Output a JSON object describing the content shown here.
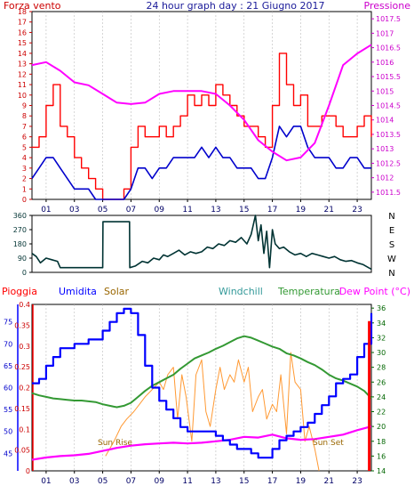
{
  "chart_data": [
    {
      "type": "line",
      "title": "24 hour graph day : 21 Giugno 2017",
      "left_label": "Forza vento",
      "right_label": "Pressione",
      "x_ticks": [
        "01",
        "03",
        "05",
        "07",
        "09",
        "11",
        "13",
        "15",
        "17",
        "19",
        "21",
        "23"
      ],
      "y_left_ticks": [
        "0",
        "1",
        "2",
        "3",
        "4",
        "5",
        "6",
        "7",
        "8",
        "9",
        "10",
        "11",
        "12",
        "13",
        "14",
        "15",
        "16",
        "17",
        "18"
      ],
      "y_right_ticks": [
        "1011.5",
        "1012",
        "1012.5",
        "1013",
        "1013.5",
        "1014",
        "1014.5",
        "1015",
        "1015.5",
        "1016",
        "1016.5",
        "1017",
        "1017.5"
      ],
      "xlim": [
        0,
        24
      ],
      "ylim_left": [
        0,
        18
      ],
      "ylim_right": [
        1011.25,
        1017.75
      ],
      "colors": {
        "gust": "#ff0000",
        "wind": "#0000cc",
        "pressure": "#ff00ff",
        "left_axis": "#cc0000",
        "right_axis": "#cc00cc"
      },
      "series": [
        {
          "key": "gust",
          "x": [
            0,
            0.5,
            1,
            1.5,
            2,
            2.5,
            3,
            3.5,
            4,
            4.5,
            5,
            5.5,
            6,
            6.5,
            7,
            7.5,
            8,
            8.5,
            9,
            9.5,
            10,
            10.5,
            11,
            11.5,
            12,
            12.5,
            13,
            13.5,
            14,
            14.5,
            15,
            15.5,
            16,
            16.5,
            17,
            17.5,
            18,
            18.5,
            19,
            19.5,
            20,
            20.5,
            21,
            21.5,
            22,
            22.5,
            23,
            23.5,
            24
          ],
          "y": [
            5,
            6,
            9,
            11,
            7,
            6,
            4,
            3,
            2,
            1,
            0,
            0,
            0,
            1,
            5,
            7,
            6,
            6,
            7,
            6,
            7,
            8,
            10,
            9,
            10,
            9,
            11,
            10,
            9,
            8,
            7,
            7,
            6,
            5,
            9,
            14,
            11,
            9,
            10,
            7,
            7,
            8,
            8,
            7,
            6,
            6,
            7,
            8,
            6
          ]
        },
        {
          "key": "wind",
          "x": [
            0,
            0.5,
            1,
            1.5,
            2,
            2.5,
            3,
            3.5,
            4,
            4.5,
            5,
            5.5,
            6,
            6.5,
            7,
            7.5,
            8,
            8.5,
            9,
            9.5,
            10,
            10.5,
            11,
            11.5,
            12,
            12.5,
            13,
            13.5,
            14,
            14.5,
            15,
            15.5,
            16,
            16.5,
            17,
            17.5,
            18,
            18.5,
            19,
            19.5,
            20,
            20.5,
            21,
            21.5,
            22,
            22.5,
            23,
            23.5,
            24
          ],
          "y": [
            2,
            3,
            4,
            4,
            3,
            2,
            1,
            1,
            1,
            0,
            0,
            0,
            0,
            0,
            1,
            3,
            3,
            2,
            3,
            3,
            4,
            4,
            4,
            4,
            5,
            4,
            5,
            4,
            4,
            3,
            3,
            3,
            2,
            2,
            4,
            7,
            6,
            7,
            7,
            5,
            4,
            4,
            4,
            3,
            3,
            4,
            4,
            3,
            3
          ]
        },
        {
          "key": "pressure",
          "x": [
            0,
            1,
            2,
            3,
            4,
            5,
            6,
            7,
            8,
            9,
            10,
            11,
            12,
            13,
            14,
            15,
            16,
            17,
            18,
            19,
            20,
            21,
            22,
            23,
            24
          ],
          "y": [
            1015.9,
            1016,
            1015.7,
            1015.3,
            1015.2,
            1014.9,
            1014.6,
            1014.55,
            1014.6,
            1014.9,
            1015,
            1015,
            1015,
            1014.9,
            1014.5,
            1014,
            1013.3,
            1012.9,
            1012.6,
            1012.7,
            1013.2,
            1014.5,
            1015.9,
            1016.3,
            1016.6
          ]
        }
      ]
    },
    {
      "type": "line",
      "y_left_ticks": [
        "0",
        "90",
        "180",
        "270",
        "360"
      ],
      "y_right_ticks": [
        "N",
        "W",
        "S",
        "E",
        "N"
      ],
      "xlim": [
        0,
        24
      ],
      "ylim": [
        0,
        360
      ],
      "colors": {
        "direction": "#003333"
      },
      "series": [
        {
          "key": "direction",
          "x": [
            0,
            0.3,
            0.6,
            1,
            1.4,
            1.8,
            2,
            2.6,
            3.2,
            3.6,
            4,
            4.6,
            5,
            5.02,
            5.5,
            6,
            6.5,
            6.9,
            6.92,
            7.3,
            7.8,
            8.2,
            8.6,
            9,
            9.3,
            9.6,
            10,
            10.4,
            10.8,
            11.2,
            11.6,
            12,
            12.4,
            12.8,
            13.2,
            13.6,
            14,
            14.4,
            14.8,
            15.2,
            15.5,
            15.8,
            16,
            16.2,
            16.4,
            16.6,
            16.8,
            17,
            17.2,
            17.5,
            17.8,
            18.2,
            18.6,
            19,
            19.4,
            19.8,
            20.2,
            20.6,
            21,
            21.4,
            21.8,
            22.2,
            22.6,
            23,
            23.4,
            23.8,
            24
          ],
          "y": [
            120,
            100,
            60,
            90,
            80,
            70,
            30,
            30,
            30,
            30,
            30,
            30,
            30,
            320,
            320,
            320,
            320,
            320,
            30,
            40,
            70,
            60,
            90,
            80,
            110,
            100,
            120,
            140,
            110,
            130,
            120,
            130,
            160,
            150,
            180,
            170,
            200,
            190,
            220,
            180,
            240,
            360,
            200,
            300,
            120,
            260,
            30,
            270,
            180,
            150,
            160,
            130,
            110,
            120,
            100,
            120,
            110,
            100,
            90,
            100,
            80,
            70,
            75,
            60,
            50,
            30,
            20
          ]
        }
      ]
    },
    {
      "type": "line",
      "labels": {
        "rain": "Pioggia",
        "humidity": "Umidita",
        "solar": "Solar",
        "windchill": "Windchill",
        "temperature": "Temperatura",
        "dewpoint": "Dew Point (°C)"
      },
      "annotations": [
        "Sun Rise",
        "Sun Set"
      ],
      "x_ticks": [
        "01",
        "03",
        "05",
        "07",
        "09",
        "11",
        "13",
        "15",
        "17",
        "19",
        "21",
        "23"
      ],
      "y_rain_ticks": [
        "0",
        "0.05",
        "0.1",
        "0.15",
        "0.2",
        "0.25",
        "0.3",
        "0.35",
        "0.4"
      ],
      "y_hum_ticks": [
        "45",
        "50",
        "55",
        "60",
        "65",
        "70",
        "75"
      ],
      "y_right_ticks": [
        "14",
        "16",
        "18",
        "20",
        "22",
        "24",
        "26",
        "28",
        "30",
        "32",
        "34",
        "36"
      ],
      "xlim": [
        0,
        24
      ],
      "ylim_rain": [
        0,
        0.4
      ],
      "ylim_hum": [
        41,
        79
      ],
      "ylim_right": [
        14,
        36.5
      ],
      "colors": {
        "rain": "#ff0000",
        "humidity": "#0000ff",
        "solar": "#ff9933",
        "windchill": "#339999",
        "temperature": "#339933",
        "dewpoint": "#ff00ff",
        "solar_label": "#996600"
      },
      "series": [
        {
          "key": "humidity",
          "x": [
            0,
            0.5,
            1,
            1.5,
            2,
            2.5,
            3,
            3.5,
            4,
            4.5,
            5,
            5.5,
            6,
            6.5,
            7,
            7.5,
            8,
            8.5,
            9,
            9.5,
            10,
            10.5,
            11,
            11.5,
            12,
            12.5,
            13,
            13.5,
            14,
            14.5,
            15,
            15.5,
            16,
            16.5,
            17,
            17.5,
            18,
            18.5,
            19,
            19.5,
            20,
            20.5,
            21,
            21.5,
            22,
            22.5,
            23,
            23.5,
            24
          ],
          "y": [
            61,
            62,
            65,
            67,
            69,
            69,
            70,
            70,
            71,
            71,
            73,
            75,
            77,
            78,
            77,
            72,
            65,
            60,
            57,
            55,
            53,
            51,
            50,
            50,
            50,
            50,
            49,
            48,
            47,
            46,
            46,
            45,
            44,
            44,
            46,
            48,
            49,
            50,
            51,
            52,
            54,
            56,
            58,
            61,
            62,
            63,
            67,
            70,
            77
          ]
        },
        {
          "key": "temperature",
          "x": [
            0,
            0.5,
            1,
            1.5,
            2,
            2.5,
            3,
            3.5,
            4,
            4.5,
            5,
            5.5,
            6,
            6.5,
            7,
            7.5,
            8,
            8.5,
            9,
            9.5,
            10,
            10.5,
            11,
            11.5,
            12,
            12.5,
            13,
            13.5,
            14,
            14.5,
            15,
            15.5,
            16,
            16.5,
            17,
            17.5,
            18,
            18.5,
            19,
            19.5,
            20,
            20.5,
            21,
            21.5,
            22,
            22.5,
            23,
            23.5,
            24
          ],
          "y": [
            24.5,
            24.2,
            24,
            23.8,
            23.7,
            23.6,
            23.5,
            23.5,
            23.4,
            23.3,
            23,
            22.8,
            22.6,
            22.8,
            23.2,
            24,
            24.8,
            25.5,
            26,
            26.5,
            27,
            27.8,
            28.5,
            29.2,
            29.6,
            30,
            30.5,
            30.9,
            31.4,
            31.9,
            32.2,
            32,
            31.6,
            31.2,
            30.8,
            30.5,
            29.9,
            29.6,
            29.2,
            28.7,
            28.3,
            27.7,
            27,
            26.5,
            26.2,
            25.8,
            25.4,
            24.8,
            23.8
          ]
        },
        {
          "key": "dewpoint",
          "x": [
            0,
            1,
            2,
            3,
            4,
            5,
            6,
            7,
            8,
            9,
            10,
            11,
            12,
            13,
            14,
            15,
            16,
            17,
            18,
            19,
            20,
            21,
            22,
            23,
            24
          ],
          "y": [
            15.5,
            15.8,
            16,
            16.1,
            16.3,
            16.7,
            17.1,
            17.4,
            17.6,
            17.7,
            17.8,
            17.7,
            17.8,
            18,
            18.2,
            18.6,
            18.5,
            18.9,
            18.4,
            18.2,
            18.3,
            18.6,
            18.9,
            19.5,
            20
          ]
        },
        {
          "key": "solar",
          "x": [
            5.2,
            5.8,
            6.3,
            6.7,
            7.2,
            7.6,
            8,
            8.5,
            9,
            9.3,
            9.6,
            10,
            10.3,
            10.6,
            10.9,
            11.3,
            11.6,
            12,
            12.3,
            12.6,
            13,
            13.3,
            13.6,
            14,
            14.3,
            14.6,
            15,
            15.3,
            15.6,
            16,
            16.3,
            16.6,
            17,
            17.3,
            17.6,
            18,
            18.3,
            18.6,
            19,
            19.3,
            19.6,
            20,
            20.3
          ],
          "y": [
            16,
            18,
            20,
            21,
            22,
            23,
            24,
            25,
            26,
            25,
            27,
            28,
            21,
            27,
            24,
            18,
            27,
            29,
            22,
            20,
            25,
            28,
            25,
            27,
            26,
            29,
            26,
            28,
            22,
            24,
            25,
            21,
            23,
            22,
            27,
            19,
            30,
            26,
            25,
            18,
            20,
            17,
            14
          ]
        },
        {
          "key": "rain",
          "x": [
            23.85,
            23.85
          ],
          "y": [
            0,
            0.36
          ]
        }
      ]
    }
  ]
}
